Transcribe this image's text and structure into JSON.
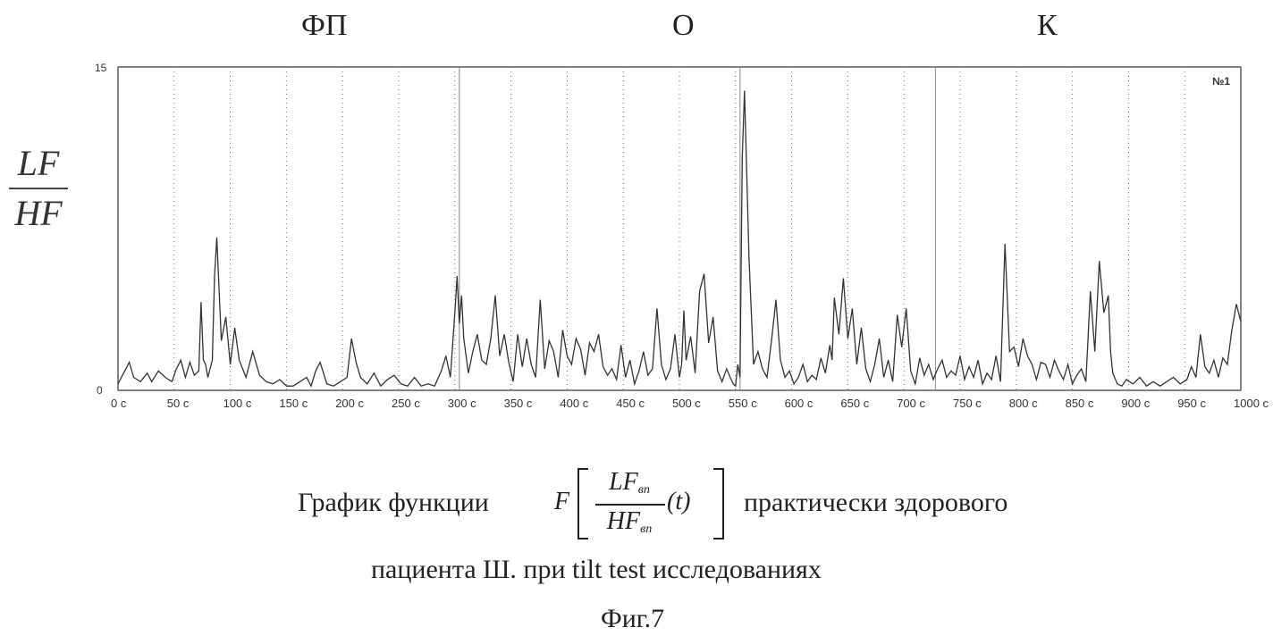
{
  "phases": {
    "fp": "ФП",
    "o": "О",
    "k": "К"
  },
  "ylabel": {
    "numerator": "LF",
    "denominator": "HF"
  },
  "chart_badge": "№1",
  "caption": {
    "before_formula": "График функции",
    "after_formula": "практически здорового",
    "line2": "пациента Ш. при   tilt test исследованиях",
    "figure": "Фиг.7"
  },
  "formula": {
    "F": "F",
    "num": "LF",
    "den": "HF",
    "sub": "вп",
    "arg": "(t)"
  },
  "chart_data": {
    "type": "line",
    "xlim": [
      0,
      1000
    ],
    "ylim": [
      0,
      15
    ],
    "ytick_labels": [
      "0",
      "15"
    ],
    "xtick_labels": [
      "0 с",
      "50 с",
      "100 с",
      "150 с",
      "200 с",
      "250 с",
      "300 с",
      "350 с",
      "400 с",
      "450 с",
      "500 с",
      "550 с",
      "600 с",
      "650 с",
      "700 с",
      "750 с",
      "800 с",
      "850 с",
      "900 с",
      "950 с",
      "1000 с"
    ],
    "xticks": [
      0,
      50,
      100,
      150,
      200,
      250,
      300,
      350,
      400,
      450,
      500,
      550,
      600,
      650,
      700,
      750,
      800,
      850,
      900,
      950,
      1000
    ],
    "grid_x": [
      50,
      100,
      150,
      200,
      250,
      300,
      350,
      400,
      450,
      500,
      550,
      600,
      650,
      700,
      750,
      800,
      850,
      900,
      950
    ],
    "markers_x": [
      304,
      554,
      728
    ],
    "x": [
      0,
      5,
      10,
      14,
      20,
      26,
      30,
      36,
      42,
      48,
      52,
      56,
      60,
      64,
      68,
      72,
      74,
      76,
      78,
      80,
      84,
      86,
      88,
      92,
      96,
      100,
      104,
      108,
      114,
      120,
      126,
      132,
      138,
      144,
      150,
      156,
      162,
      168,
      172,
      176,
      180,
      186,
      192,
      198,
      204,
      208,
      212,
      216,
      222,
      228,
      234,
      240,
      246,
      252,
      258,
      264,
      270,
      276,
      282,
      288,
      292,
      296,
      300,
      302,
      304,
      306,
      308,
      312,
      316,
      320,
      324,
      328,
      332,
      336,
      340,
      344,
      348,
      352,
      356,
      360,
      364,
      368,
      372,
      376,
      380,
      384,
      388,
      392,
      396,
      400,
      404,
      408,
      412,
      416,
      420,
      424,
      428,
      432,
      436,
      440,
      444,
      448,
      452,
      456,
      460,
      464,
      468,
      472,
      476,
      480,
      484,
      488,
      492,
      496,
      500,
      502,
      504,
      506,
      510,
      514,
      518,
      522,
      526,
      530,
      534,
      538,
      542,
      546,
      548,
      550,
      552,
      554,
      556,
      558,
      562,
      566,
      570,
      574,
      578,
      582,
      586,
      590,
      594,
      598,
      602,
      606,
      610,
      614,
      618,
      622,
      626,
      630,
      634,
      636,
      638,
      642,
      646,
      650,
      654,
      658,
      662,
      666,
      670,
      674,
      678,
      682,
      686,
      690,
      694,
      698,
      702,
      706,
      710,
      714,
      718,
      722,
      726,
      730,
      734,
      738,
      742,
      746,
      750,
      754,
      758,
      762,
      766,
      770,
      774,
      778,
      782,
      786,
      790,
      794,
      798,
      802,
      806,
      810,
      814,
      818,
      822,
      826,
      830,
      834,
      838,
      842,
      846,
      850,
      854,
      858,
      862,
      866,
      870,
      874,
      878,
      882,
      884,
      886,
      890,
      894,
      898,
      904,
      910,
      916,
      922,
      928,
      934,
      940,
      946,
      952,
      956,
      960,
      964,
      968,
      972,
      976,
      980,
      984,
      988,
      992,
      996,
      1000
    ],
    "y": [
      0.3,
      0.8,
      1.3,
      0.6,
      0.4,
      0.8,
      0.4,
      0.9,
      0.6,
      0.4,
      1.0,
      1.4,
      0.6,
      1.3,
      0.7,
      0.9,
      4.1,
      1.4,
      1.2,
      0.6,
      1.4,
      5.3,
      7.1,
      2.3,
      3.4,
      1.2,
      2.9,
      1.4,
      0.6,
      1.8,
      0.7,
      0.4,
      0.3,
      0.5,
      0.2,
      0.2,
      0.4,
      0.6,
      0.2,
      0.9,
      1.3,
      0.3,
      0.2,
      0.4,
      0.6,
      2.4,
      1.3,
      0.6,
      0.3,
      0.8,
      0.2,
      0.5,
      0.7,
      0.3,
      0.2,
      0.6,
      0.2,
      0.3,
      0.2,
      0.9,
      1.6,
      0.6,
      3.6,
      5.3,
      3.1,
      4.4,
      2.4,
      0.8,
      1.8,
      2.6,
      1.4,
      1.2,
      2.4,
      4.4,
      1.6,
      2.6,
      1.3,
      0.4,
      2.6,
      1.1,
      2.4,
      1.2,
      0.6,
      4.2,
      1.0,
      2.3,
      1.8,
      0.6,
      2.8,
      1.6,
      1.2,
      2.4,
      1.9,
      0.7,
      2.2,
      1.8,
      2.6,
      1.1,
      0.7,
      1.0,
      0.5,
      2.1,
      0.6,
      1.4,
      0.3,
      0.9,
      1.8,
      0.7,
      1.0,
      3.8,
      1.2,
      0.5,
      1.0,
      2.6,
      0.6,
      1.2,
      3.7,
      1.4,
      2.5,
      0.8,
      4.6,
      5.4,
      2.2,
      3.4,
      0.9,
      0.4,
      1.0,
      0.5,
      0.3,
      0.2,
      1.2,
      0.6,
      10.8,
      13.9,
      6.1,
      1.2,
      1.8,
      1.0,
      0.6,
      2.3,
      4.2,
      1.4,
      0.6,
      0.9,
      0.3,
      0.6,
      1.2,
      0.4,
      0.7,
      0.5,
      1.5,
      0.8,
      2.1,
      1.4,
      4.3,
      2.6,
      5.2,
      2.4,
      3.8,
      1.2,
      2.9,
      1.0,
      0.4,
      1.2,
      2.4,
      0.6,
      1.4,
      0.4,
      3.5,
      2.0,
      3.8,
      0.9,
      0.3,
      1.5,
      0.7,
      1.2,
      0.5,
      1.0,
      1.4,
      0.6,
      0.9,
      0.7,
      1.6,
      0.5,
      1.1,
      0.6,
      1.4,
      0.3,
      0.8,
      0.5,
      1.6,
      0.4,
      6.8,
      1.8,
      2.0,
      1.1,
      2.4,
      1.6,
      1.2,
      0.5,
      1.3,
      1.2,
      0.6,
      1.4,
      0.9,
      0.5,
      1.2,
      0.3,
      0.7,
      1.0,
      0.4,
      4.6,
      1.8,
      6.0,
      3.6,
      4.4,
      1.8,
      0.8,
      0.3,
      0.2,
      0.5,
      0.3,
      0.6,
      0.2,
      0.4,
      0.2,
      0.4,
      0.6,
      0.3,
      0.5,
      1.1,
      0.6,
      2.6,
      1.1,
      0.8,
      1.4,
      0.6,
      1.5,
      1.2,
      2.8,
      4.0,
      3.2
    ]
  }
}
